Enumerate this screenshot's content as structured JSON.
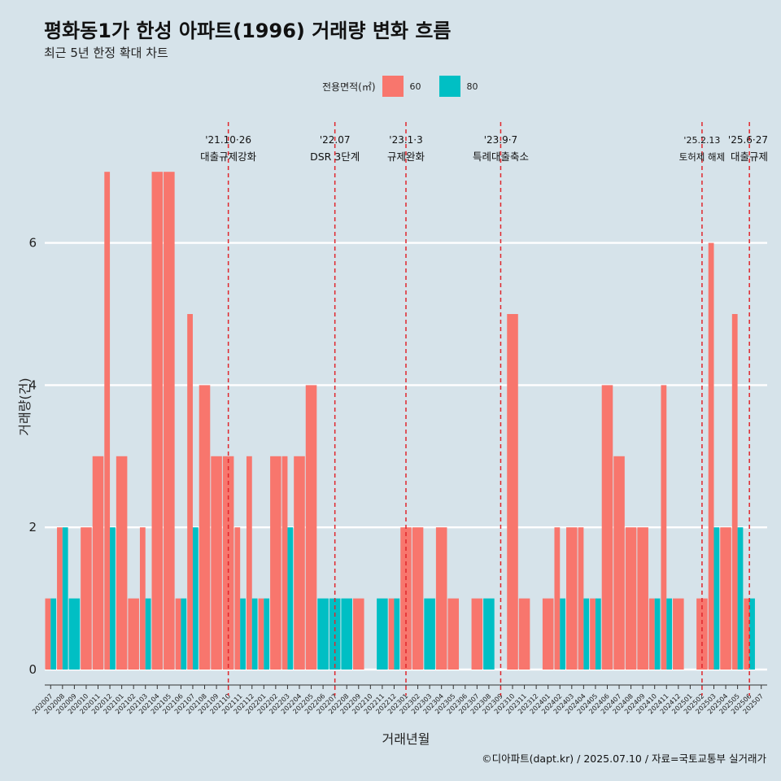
{
  "title": "평화동1가 한성 아파트(1996) 거래량 변화 흐름",
  "subtitle": "최근 5년 한정 확대 차트",
  "legend": {
    "title": "전용면적(㎡)",
    "items": [
      {
        "label": "60",
        "color": "#f8766d"
      },
      {
        "label": "80",
        "color": "#00bfc4"
      }
    ]
  },
  "footer": "©디아파트(dapt.kr) / 2025.07.10 / 자료=국토교통부 실거래가",
  "chart_data": {
    "type": "bar",
    "xlabel": "거래년월",
    "ylabel": "거래량(건)",
    "ylim": [
      0,
      7.5
    ],
    "yticks": [
      0,
      2,
      4,
      6
    ],
    "grid": "horizontal",
    "categories": [
      "202007",
      "202008",
      "202009",
      "202010",
      "202011",
      "202012",
      "202101",
      "202102",
      "202103",
      "202104",
      "202105",
      "202106",
      "202107",
      "202108",
      "202109",
      "202110",
      "202111",
      "202112",
      "202201",
      "202202",
      "202203",
      "202204",
      "202205",
      "202206",
      "202207",
      "202208",
      "202209",
      "202210",
      "202211",
      "202212",
      "202301",
      "202302",
      "202303",
      "202304",
      "202305",
      "202306",
      "202307",
      "202308",
      "202309",
      "202310",
      "202311",
      "202312",
      "202401",
      "202402",
      "202403",
      "202404",
      "202405",
      "202406",
      "202407",
      "202408",
      "202409",
      "202410",
      "202411",
      "202412",
      "202501",
      "202502",
      "202503",
      "202504",
      "202505",
      "202506",
      "202507"
    ],
    "series": [
      {
        "name": "60",
        "color": "#f8766d",
        "values": [
          1,
          2,
          0,
          2,
          3,
          7,
          3,
          1,
          2,
          7,
          7,
          1,
          5,
          4,
          3,
          3,
          2,
          3,
          1,
          3,
          3,
          3,
          4,
          0,
          0,
          0,
          1,
          0,
          0,
          1,
          2,
          2,
          0,
          2,
          1,
          0,
          1,
          0,
          0,
          5,
          1,
          0,
          1,
          2,
          2,
          2,
          1,
          4,
          3,
          2,
          2,
          1,
          4,
          1,
          0,
          1,
          6,
          2,
          5,
          1,
          0
        ]
      },
      {
        "name": "80",
        "color": "#00bfc4",
        "values": [
          1,
          2,
          1,
          0,
          0,
          2,
          0,
          0,
          1,
          0,
          0,
          1,
          2,
          0,
          0,
          0,
          1,
          1,
          1,
          0,
          2,
          0,
          0,
          1,
          1,
          1,
          0,
          0,
          1,
          1,
          0,
          0,
          1,
          0,
          0,
          0,
          0,
          1,
          0,
          0,
          0,
          0,
          0,
          1,
          0,
          1,
          1,
          0,
          0,
          0,
          0,
          1,
          1,
          0,
          0,
          0,
          2,
          0,
          2,
          1,
          0
        ]
      }
    ],
    "events": [
      {
        "position": "202110",
        "line1": "'21.10·26",
        "line2": "대출규제강화"
      },
      {
        "position": "202207",
        "line1": "'22.07",
        "line2": "DSR 3단계"
      },
      {
        "position": "202301",
        "line1": "'23.1·3",
        "line2": "규제완화"
      },
      {
        "position": "202309",
        "line1": "'23.9·7",
        "line2": "특례대출축소"
      },
      {
        "position": "202502",
        "line1": "'25.2.13",
        "line2": "토허제 해제"
      },
      {
        "position": "202506",
        "line1": "'25.6·27",
        "line2": "대출규제"
      }
    ]
  }
}
